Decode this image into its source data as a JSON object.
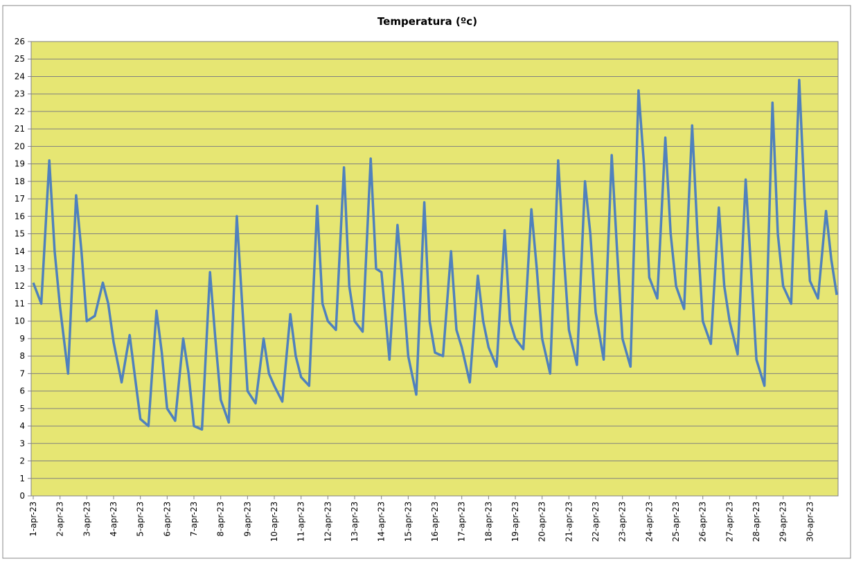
{
  "chart_data": {
    "type": "line",
    "title": "Temperatura (ºc)",
    "x": [
      1,
      1.3,
      1.6,
      1.8,
      2,
      2.3,
      2.6,
      2.8,
      3,
      3.3,
      3.6,
      3.8,
      4,
      4.3,
      4.6,
      4.8,
      5,
      5.3,
      5.6,
      5.8,
      6,
      6.3,
      6.6,
      6.8,
      7,
      7.3,
      7.6,
      7.8,
      8,
      8.3,
      8.6,
      8.8,
      9,
      9.3,
      9.6,
      9.8,
      10,
      10.3,
      10.6,
      10.8,
      11,
      11.3,
      11.6,
      11.8,
      12,
      12.3,
      12.6,
      12.8,
      13,
      13.3,
      13.6,
      13.8,
      14,
      14.3,
      14.6,
      14.8,
      15,
      15.3,
      15.6,
      15.8,
      16,
      16.3,
      16.6,
      16.8,
      17,
      17.3,
      17.6,
      17.8,
      18,
      18.3,
      18.6,
      18.8,
      19,
      19.3,
      19.6,
      19.8,
      20,
      20.3,
      20.6,
      20.8,
      21,
      21.3,
      21.6,
      21.8,
      22,
      22.3,
      22.6,
      22.8,
      23,
      23.3,
      23.6,
      23.8,
      24,
      24.3,
      24.6,
      24.8,
      25,
      25.3,
      25.6,
      25.8,
      26,
      26.3,
      26.6,
      26.8,
      27,
      27.3,
      27.6,
      27.8,
      28,
      28.3,
      28.6,
      28.8,
      29,
      29.3,
      29.6,
      29.8,
      30,
      30.3,
      30.6,
      30.8,
      31
    ],
    "series": [
      {
        "name": "Temperatura",
        "color": "#4f81bd",
        "values": [
          12.2,
          11,
          19.2,
          14,
          10.8,
          7,
          17.2,
          14,
          10,
          10.3,
          12.2,
          11,
          8.8,
          6.5,
          9.2,
          6.8,
          4.4,
          4,
          10.6,
          8.2,
          5,
          4.3,
          9,
          7,
          4,
          3.8,
          12.8,
          9,
          5.5,
          4.2,
          16,
          11,
          6,
          5.3,
          9,
          7,
          6.3,
          5.4,
          10.4,
          8,
          6.8,
          6.3,
          16.6,
          11,
          10,
          9.5,
          18.8,
          12,
          10,
          9.4,
          19.3,
          13,
          12.8,
          7.8,
          15.5,
          12,
          8,
          5.8,
          16.8,
          10,
          8.2,
          8,
          14,
          9.5,
          8.5,
          6.5,
          12.6,
          10,
          8.5,
          7.4,
          15.2,
          10,
          9,
          8.4,
          16.4,
          13,
          9,
          7,
          19.2,
          14,
          9.5,
          7.5,
          18,
          15,
          10.5,
          7.8,
          19.5,
          14,
          9,
          7.4,
          23.2,
          19,
          12.5,
          11.3,
          20.5,
          15,
          12,
          10.7,
          21.2,
          15,
          10,
          8.7,
          16.5,
          12,
          10,
          8.1,
          18.1,
          13,
          7.8,
          6.3,
          22.5,
          15,
          12,
          11,
          23.8,
          17,
          12.3,
          11.3,
          16.3,
          13.5,
          11.5
        ]
      }
    ],
    "xlim": [
      1,
      31.05
    ],
    "xticks": [
      {
        "value": 1,
        "label": "1-apr-23"
      },
      {
        "value": 2,
        "label": "2-apr-23"
      },
      {
        "value": 3,
        "label": "3-apr-23"
      },
      {
        "value": 4,
        "label": "4-apr-23"
      },
      {
        "value": 5,
        "label": "5-apr-23"
      },
      {
        "value": 6,
        "label": "6-apr-23"
      },
      {
        "value": 7,
        "label": "7-apr-23"
      },
      {
        "value": 8,
        "label": "8-apr-23"
      },
      {
        "value": 9,
        "label": "9-apr-23"
      },
      {
        "value": 10,
        "label": "10-apr-23"
      },
      {
        "value": 11,
        "label": "11-apr-23"
      },
      {
        "value": 12,
        "label": "12-apr-23"
      },
      {
        "value": 13,
        "label": "13-apr-23"
      },
      {
        "value": 14,
        "label": "14-apr-23"
      },
      {
        "value": 15,
        "label": "15-apr-23"
      },
      {
        "value": 16,
        "label": "16-apr-23"
      },
      {
        "value": 17,
        "label": "17-apr-23"
      },
      {
        "value": 18,
        "label": "18-apr-23"
      },
      {
        "value": 19,
        "label": "19-apr-23"
      },
      {
        "value": 20,
        "label": "20-apr-23"
      },
      {
        "value": 21,
        "label": "21-apr-23"
      },
      {
        "value": 22,
        "label": "22-apr-23"
      },
      {
        "value": 23,
        "label": "23-apr-23"
      },
      {
        "value": 24,
        "label": "24-apr-23"
      },
      {
        "value": 25,
        "label": "25-apr-23"
      },
      {
        "value": 26,
        "label": "26-apr-23"
      },
      {
        "value": 27,
        "label": "27-apr-23"
      },
      {
        "value": 28,
        "label": "28-apr-23"
      },
      {
        "value": 29,
        "label": "29-apr-23"
      },
      {
        "value": 30,
        "label": "30-apr-23"
      }
    ],
    "ylim": [
      0,
      26
    ],
    "yticks": [
      0,
      1,
      2,
      3,
      4,
      5,
      6,
      7,
      8,
      9,
      10,
      11,
      12,
      13,
      14,
      15,
      16,
      17,
      18,
      19,
      20,
      21,
      22,
      23,
      24,
      25,
      26
    ],
    "grid": true,
    "plot_background": "#e6e673"
  }
}
